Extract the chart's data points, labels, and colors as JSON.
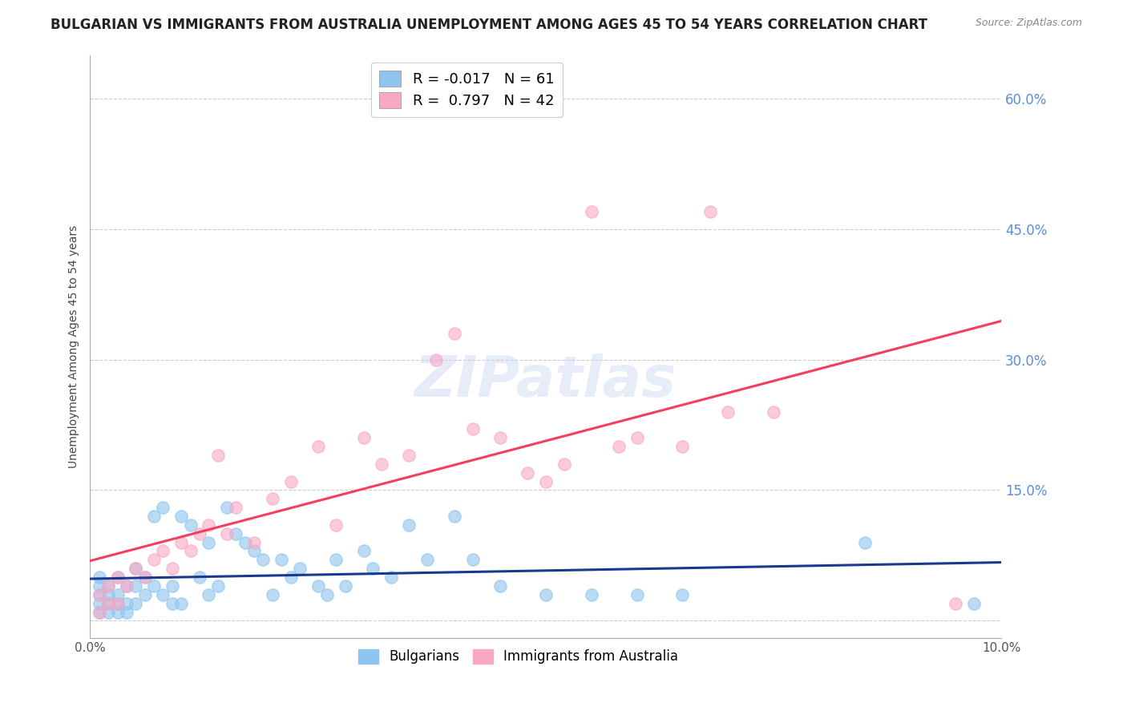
{
  "title": "BULGARIAN VS IMMIGRANTS FROM AUSTRALIA UNEMPLOYMENT AMONG AGES 45 TO 54 YEARS CORRELATION CHART",
  "source": "Source: ZipAtlas.com",
  "ylabel": "Unemployment Among Ages 45 to 54 years",
  "xlim": [
    0.0,
    0.1
  ],
  "ylim": [
    -0.02,
    0.65
  ],
  "yticks": [
    0.0,
    0.15,
    0.3,
    0.45,
    0.6
  ],
  "right_ytick_labels": [
    "60.0%",
    "45.0%",
    "30.0%",
    "15.0%",
    ""
  ],
  "xtick_labels": [
    "0.0%",
    "10.0%"
  ],
  "legend_R_bulgarian": "-0.017",
  "legend_N_bulgarian": "61",
  "legend_R_australia": "0.797",
  "legend_N_australia": "42",
  "bulgarian_color": "#8EC4EE",
  "australia_color": "#F9A8C4",
  "trend_bulgarian_color": "#1A3A8F",
  "trend_australia_color": "#F43F5E",
  "watermark": "ZIPatlas",
  "background_color": "#FFFFFF",
  "grid_color": "#CCCCCC",
  "right_axis_color": "#5B8DD9",
  "title_fontsize": 12,
  "axis_label_fontsize": 10,
  "tick_fontsize": 11,
  "legend_fontsize": 13,
  "bg_x": [
    0.001,
    0.001,
    0.001,
    0.001,
    0.001,
    0.002,
    0.002,
    0.002,
    0.002,
    0.003,
    0.003,
    0.003,
    0.003,
    0.004,
    0.004,
    0.004,
    0.005,
    0.005,
    0.005,
    0.006,
    0.006,
    0.007,
    0.007,
    0.008,
    0.008,
    0.009,
    0.009,
    0.01,
    0.01,
    0.011,
    0.012,
    0.013,
    0.013,
    0.014,
    0.015,
    0.016,
    0.017,
    0.018,
    0.019,
    0.02,
    0.021,
    0.022,
    0.023,
    0.025,
    0.026,
    0.027,
    0.028,
    0.03,
    0.031,
    0.033,
    0.035,
    0.037,
    0.04,
    0.042,
    0.045,
    0.05,
    0.055,
    0.06,
    0.065,
    0.085,
    0.097
  ],
  "bg_y": [
    0.01,
    0.02,
    0.03,
    0.04,
    0.05,
    0.01,
    0.02,
    0.03,
    0.04,
    0.01,
    0.02,
    0.03,
    0.05,
    0.01,
    0.02,
    0.04,
    0.02,
    0.04,
    0.06,
    0.03,
    0.05,
    0.04,
    0.12,
    0.03,
    0.13,
    0.02,
    0.04,
    0.02,
    0.12,
    0.11,
    0.05,
    0.03,
    0.09,
    0.04,
    0.13,
    0.1,
    0.09,
    0.08,
    0.07,
    0.03,
    0.07,
    0.05,
    0.06,
    0.04,
    0.03,
    0.07,
    0.04,
    0.08,
    0.06,
    0.05,
    0.11,
    0.07,
    0.12,
    0.07,
    0.04,
    0.03,
    0.03,
    0.03,
    0.03,
    0.09,
    0.02
  ],
  "au_x": [
    0.001,
    0.001,
    0.002,
    0.002,
    0.003,
    0.003,
    0.004,
    0.005,
    0.006,
    0.007,
    0.008,
    0.009,
    0.01,
    0.011,
    0.012,
    0.013,
    0.014,
    0.015,
    0.016,
    0.018,
    0.02,
    0.022,
    0.025,
    0.027,
    0.03,
    0.032,
    0.035,
    0.038,
    0.04,
    0.042,
    0.045,
    0.048,
    0.05,
    0.052,
    0.055,
    0.058,
    0.06,
    0.065,
    0.068,
    0.07,
    0.075,
    0.095
  ],
  "au_y": [
    0.01,
    0.03,
    0.02,
    0.04,
    0.02,
    0.05,
    0.04,
    0.06,
    0.05,
    0.07,
    0.08,
    0.06,
    0.09,
    0.08,
    0.1,
    0.11,
    0.19,
    0.1,
    0.13,
    0.09,
    0.14,
    0.16,
    0.2,
    0.11,
    0.21,
    0.18,
    0.19,
    0.3,
    0.33,
    0.22,
    0.21,
    0.17,
    0.16,
    0.18,
    0.47,
    0.2,
    0.21,
    0.2,
    0.47,
    0.24,
    0.24,
    0.02
  ]
}
